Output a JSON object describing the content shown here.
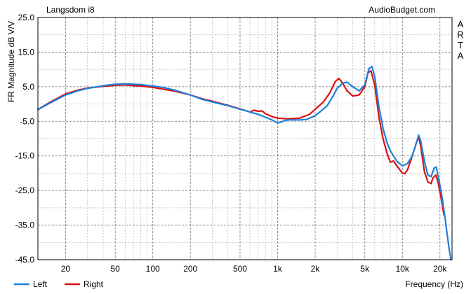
{
  "header": {
    "title": "Langsdom i8",
    "brand": "AudioBudget.com",
    "side_letters": [
      "A",
      "R",
      "T",
      "A"
    ]
  },
  "chart_data": {
    "type": "line",
    "title": "Langsdom i8",
    "xlabel": "Frequency (Hz)",
    "ylabel": "FR Magnitude dB V/V",
    "x_scale": "log",
    "xlim": [
      12,
      25000
    ],
    "ylim": [
      -45,
      25
    ],
    "x_ticks": [
      {
        "value": 20,
        "label": "20"
      },
      {
        "value": 50,
        "label": "50"
      },
      {
        "value": 100,
        "label": "100"
      },
      {
        "value": 200,
        "label": "200"
      },
      {
        "value": 500,
        "label": "500"
      },
      {
        "value": 1000,
        "label": "1k"
      },
      {
        "value": 2000,
        "label": "2k"
      },
      {
        "value": 5000,
        "label": "5k"
      },
      {
        "value": 10000,
        "label": "10k"
      },
      {
        "value": 20000,
        "label": "20k"
      }
    ],
    "y_ticks": [
      {
        "value": 25,
        "label": "25.0"
      },
      {
        "value": 15,
        "label": "15.0"
      },
      {
        "value": 5,
        "label": "5.0"
      },
      {
        "value": -5,
        "label": "-5.0"
      },
      {
        "value": -15,
        "label": "-15.0"
      },
      {
        "value": -25,
        "label": "-25.0"
      },
      {
        "value": -35,
        "label": "-35.0"
      },
      {
        "value": -45,
        "label": "-45.0"
      }
    ],
    "grid": true,
    "legend_position": "bottom-left",
    "series": [
      {
        "name": "Left",
        "color": "#1e7fd8",
        "points": [
          [
            12,
            -1.6
          ],
          [
            15,
            0.3
          ],
          [
            20,
            2.6
          ],
          [
            25,
            3.8
          ],
          [
            30,
            4.5
          ],
          [
            40,
            5.3
          ],
          [
            50,
            5.7
          ],
          [
            60,
            5.8
          ],
          [
            70,
            5.7
          ],
          [
            80,
            5.6
          ],
          [
            100,
            5.2
          ],
          [
            120,
            4.8
          ],
          [
            150,
            4.0
          ],
          [
            200,
            2.6
          ],
          [
            250,
            1.3
          ],
          [
            300,
            0.6
          ],
          [
            400,
            -0.5
          ],
          [
            500,
            -1.5
          ],
          [
            600,
            -2.3
          ],
          [
            700,
            -3.0
          ],
          [
            800,
            -3.8
          ],
          [
            900,
            -4.6
          ],
          [
            1000,
            -5.5
          ],
          [
            1100,
            -5.0
          ],
          [
            1200,
            -4.6
          ],
          [
            1500,
            -4.6
          ],
          [
            1700,
            -4.5
          ],
          [
            2000,
            -3.4
          ],
          [
            2200,
            -2.2
          ],
          [
            2500,
            -0.5
          ],
          [
            2800,
            2.5
          ],
          [
            3000,
            4.5
          ],
          [
            3300,
            6.0
          ],
          [
            3600,
            6.3
          ],
          [
            4000,
            5.0
          ],
          [
            4500,
            3.8
          ],
          [
            5000,
            5.5
          ],
          [
            5400,
            10.3
          ],
          [
            5700,
            10.8
          ],
          [
            6000,
            8.0
          ],
          [
            6500,
            -1.0
          ],
          [
            7000,
            -7.0
          ],
          [
            7500,
            -11.0
          ],
          [
            8000,
            -13.5
          ],
          [
            9000,
            -16.5
          ],
          [
            10000,
            -17.9
          ],
          [
            11000,
            -17.2
          ],
          [
            12000,
            -15.0
          ],
          [
            13000,
            -11.0
          ],
          [
            13500,
            -9.0
          ],
          [
            14000,
            -10.5
          ],
          [
            15000,
            -16.5
          ],
          [
            16000,
            -20.5
          ],
          [
            17000,
            -21.0
          ],
          [
            18000,
            -18.5
          ],
          [
            18700,
            -18.2
          ],
          [
            19500,
            -21.5
          ],
          [
            20500,
            -25.5
          ],
          [
            22000,
            -33.0
          ],
          [
            23500,
            -41.0
          ],
          [
            24500,
            -45.0
          ]
        ]
      },
      {
        "name": "Right",
        "color": "#dd1010",
        "points": [
          [
            12,
            -1.6
          ],
          [
            15,
            0.5
          ],
          [
            20,
            2.9
          ],
          [
            25,
            4.0
          ],
          [
            30,
            4.6
          ],
          [
            40,
            5.1
          ],
          [
            50,
            5.4
          ],
          [
            60,
            5.5
          ],
          [
            70,
            5.3
          ],
          [
            80,
            5.2
          ],
          [
            100,
            4.8
          ],
          [
            120,
            4.3
          ],
          [
            150,
            3.7
          ],
          [
            200,
            2.6
          ],
          [
            250,
            1.5
          ],
          [
            300,
            0.8
          ],
          [
            400,
            -0.4
          ],
          [
            500,
            -1.4
          ],
          [
            600,
            -2.3
          ],
          [
            650,
            -1.8
          ],
          [
            700,
            -2.1
          ],
          [
            750,
            -2.0
          ],
          [
            800,
            -2.8
          ],
          [
            900,
            -3.6
          ],
          [
            1000,
            -4.1
          ],
          [
            1200,
            -4.3
          ],
          [
            1500,
            -4.1
          ],
          [
            1800,
            -3.0
          ],
          [
            2000,
            -1.5
          ],
          [
            2300,
            0.4
          ],
          [
            2600,
            3.0
          ],
          [
            2900,
            6.5
          ],
          [
            3100,
            7.4
          ],
          [
            3300,
            6.2
          ],
          [
            3600,
            3.8
          ],
          [
            4000,
            2.3
          ],
          [
            4500,
            2.6
          ],
          [
            5000,
            5.0
          ],
          [
            5300,
            9.0
          ],
          [
            5600,
            9.6
          ],
          [
            6000,
            5.5
          ],
          [
            6500,
            -4.0
          ],
          [
            7000,
            -10.0
          ],
          [
            7500,
            -14.0
          ],
          [
            8000,
            -16.8
          ],
          [
            8500,
            -16.5
          ],
          [
            9000,
            -17.8
          ],
          [
            10000,
            -20.0
          ],
          [
            10500,
            -20.1
          ],
          [
            11000,
            -19.0
          ],
          [
            12000,
            -15.0
          ],
          [
            13000,
            -11.0
          ],
          [
            13500,
            -9.5
          ],
          [
            14000,
            -12.0
          ],
          [
            15000,
            -19.5
          ],
          [
            16000,
            -22.5
          ],
          [
            17000,
            -23.0
          ],
          [
            17500,
            -21.5
          ],
          [
            18500,
            -20.5
          ],
          [
            19300,
            -22.5
          ],
          [
            20500,
            -27.5
          ],
          [
            21500,
            -32.0
          ]
        ]
      }
    ]
  }
}
